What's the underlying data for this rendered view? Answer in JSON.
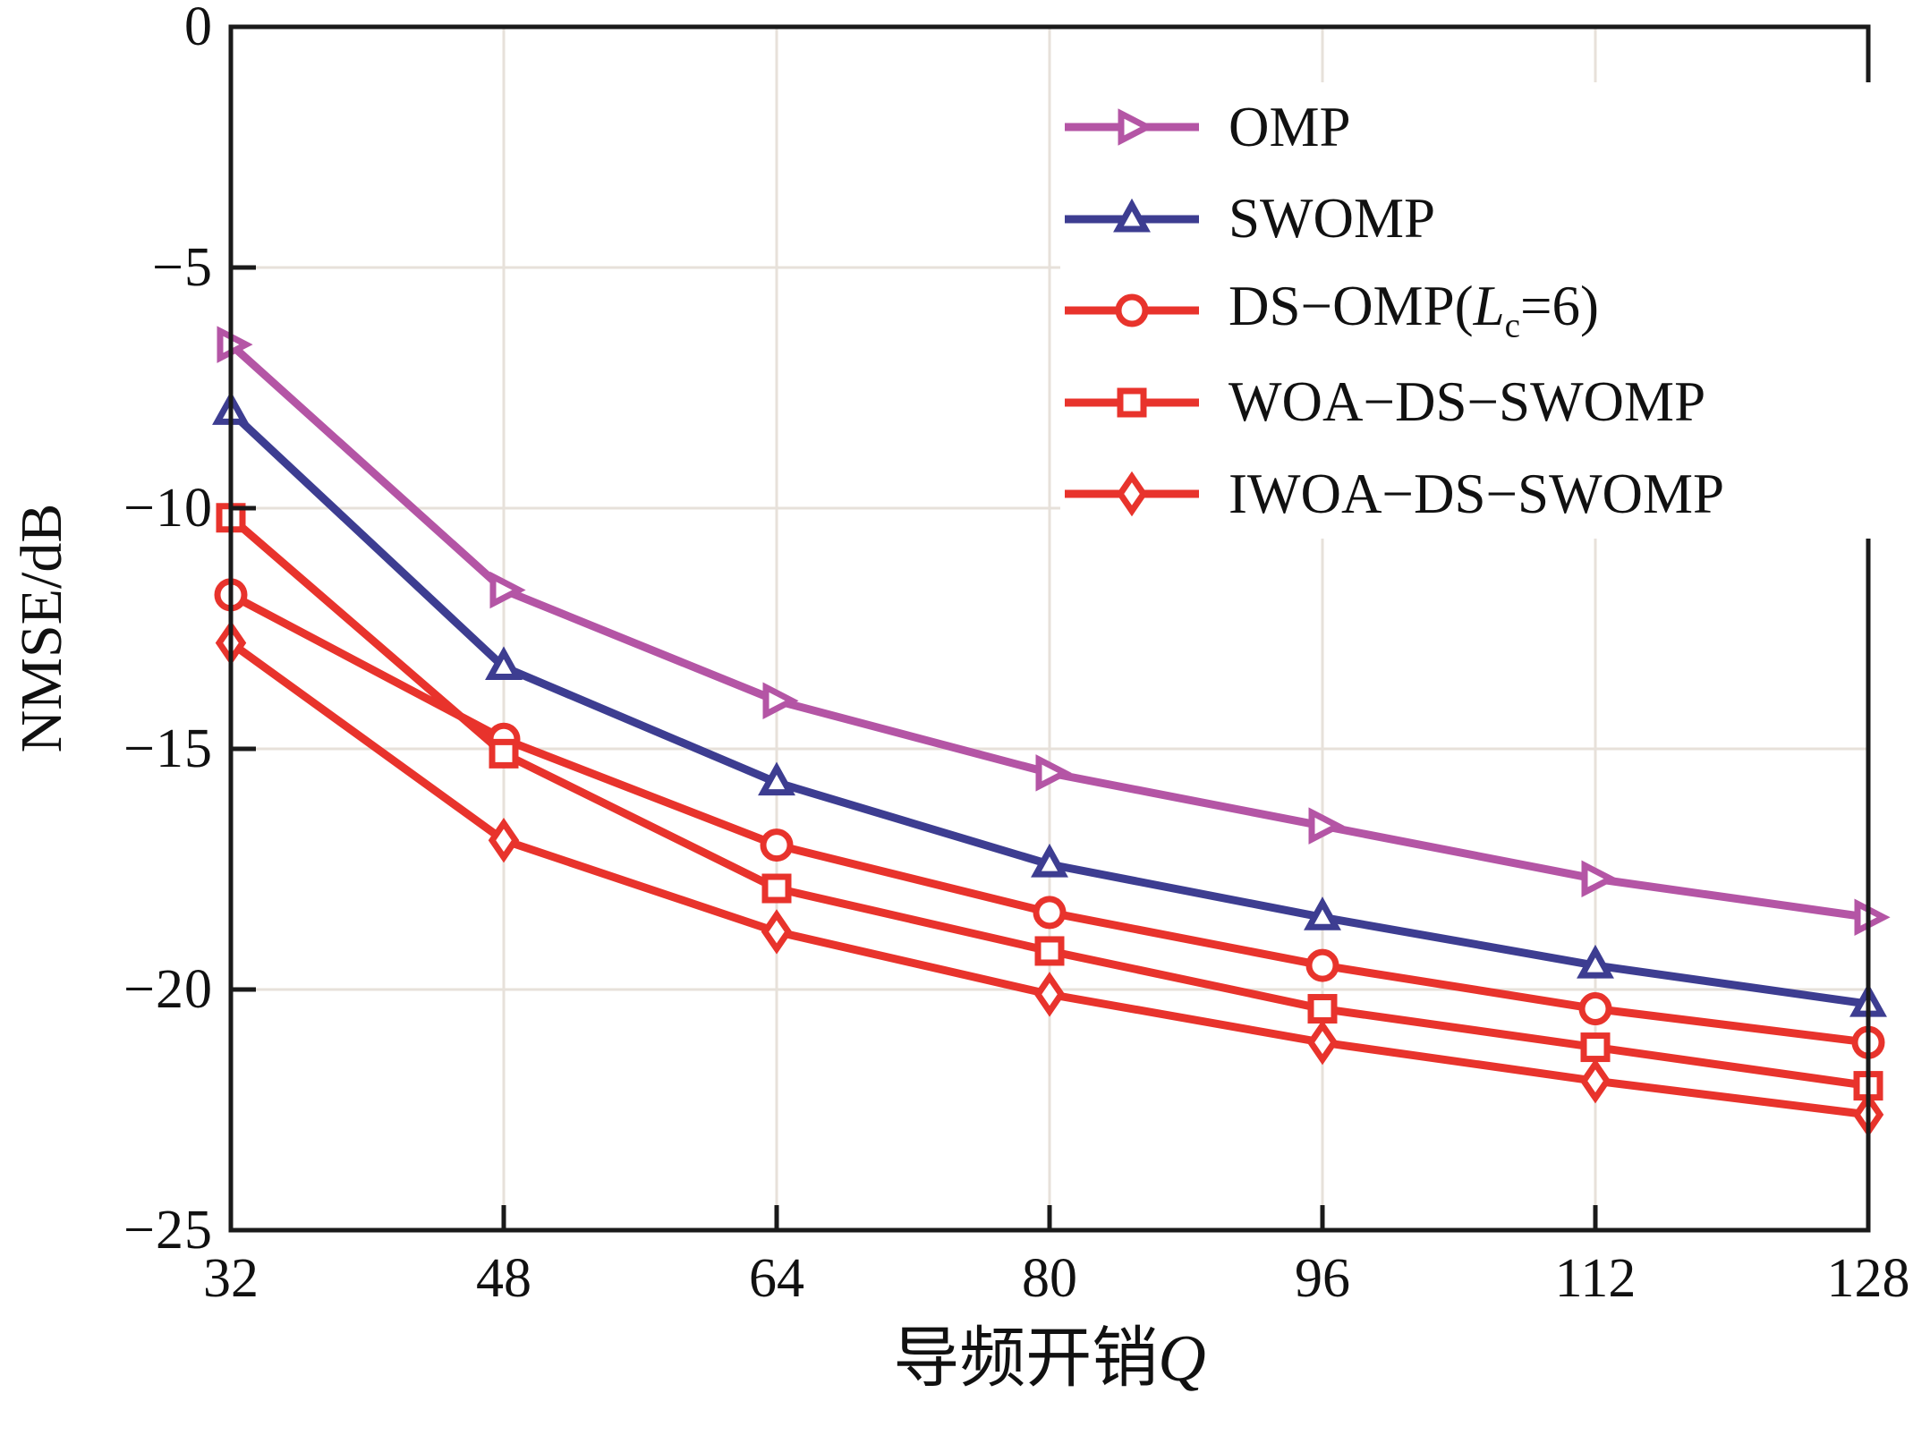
{
  "figure": {
    "background": "#ffffff",
    "frame_color": "#1a1a1a",
    "grid_color": "#e7e1da"
  },
  "chart_data": {
    "type": "line",
    "title": "",
    "xlabel_cn": "导频开销",
    "xlabel_var": "Q",
    "ylabel": "NMSE/dB",
    "x": [
      32,
      48,
      64,
      80,
      96,
      112,
      128
    ],
    "x_ticks": [
      32,
      48,
      64,
      80,
      96,
      112,
      128
    ],
    "y_ticks": [
      0,
      -5,
      -10,
      -15,
      -20,
      -25
    ],
    "xlim": [
      32,
      128
    ],
    "ylim": [
      -25,
      0
    ],
    "grid": true,
    "legend_position": "upper right",
    "series": [
      {
        "name": "OMP",
        "marker": "triangle-right",
        "color": "#b455a5",
        "values": [
          -6.6,
          -11.7,
          -14.0,
          -15.5,
          -16.6,
          -17.7,
          -18.5
        ],
        "legend": {
          "pre": "OMP",
          "var": "",
          "sub": "",
          "post": ""
        }
      },
      {
        "name": "SWOMP",
        "marker": "triangle-up",
        "color": "#3d3d91",
        "values": [
          -8.0,
          -13.3,
          -15.7,
          -17.4,
          -18.5,
          -19.5,
          -20.3
        ],
        "legend": {
          "pre": "SWOMP",
          "var": "",
          "sub": "",
          "post": ""
        }
      },
      {
        "name": "DS-OMP(Lc=6)",
        "marker": "circle",
        "color": "#e8332c",
        "values": [
          -11.8,
          -14.8,
          -17.0,
          -18.4,
          -19.5,
          -20.4,
          -21.1
        ],
        "legend": {
          "pre": "DS−OMP(",
          "var": "L",
          "sub": "c",
          "post": "=6)"
        }
      },
      {
        "name": "WOA-DS-SWOMP",
        "marker": "square",
        "color": "#e8332c",
        "values": [
          -10.2,
          -15.1,
          -17.9,
          -19.2,
          -20.4,
          -21.2,
          -22.0
        ],
        "legend": {
          "pre": "WOA−DS−SWOMP",
          "var": "",
          "sub": "",
          "post": ""
        }
      },
      {
        "name": "IWOA-DS-SWOMP",
        "marker": "diamond",
        "color": "#e8332c",
        "values": [
          -12.8,
          -16.9,
          -18.8,
          -20.1,
          -21.1,
          -21.9,
          -22.6
        ],
        "legend": {
          "pre": "IWOA−DS−SWOMP",
          "var": "",
          "sub": "",
          "post": ""
        }
      }
    ]
  }
}
